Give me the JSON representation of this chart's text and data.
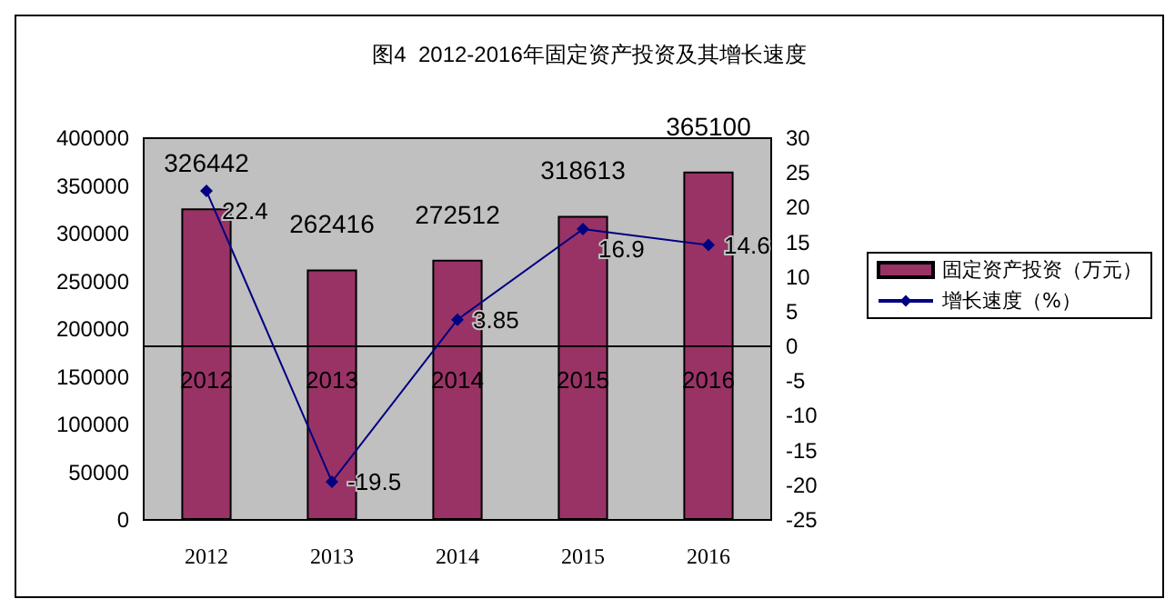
{
  "chart_data": {
    "type": "bar",
    "title": "图4  2012-2016年固定资产投资及其增长速度",
    "categories": [
      "2012",
      "2013",
      "2014",
      "2015",
      "2016"
    ],
    "series": [
      {
        "name": "固定资产投资（万元）",
        "color": "#993366",
        "values": [
          326442,
          262416,
          272512,
          318613,
          365100
        ]
      },
      {
        "name": "增长速度（%）",
        "type": "line",
        "axis": "y2",
        "color": "#000080",
        "values": [
          22.4,
          -19.5,
          3.85,
          16.9,
          14.6
        ]
      }
    ],
    "ylim": [
      0,
      400000
    ],
    "yticks": [
      0,
      50000,
      100000,
      150000,
      200000,
      250000,
      300000,
      350000,
      400000
    ],
    "y2lim": [
      -25,
      30
    ],
    "y2ticks": [
      -25,
      -20,
      -15,
      -10,
      -5,
      0,
      5,
      10,
      15,
      20,
      25,
      30
    ],
    "ref_lines": [
      {
        "axis": "y2",
        "value": 0,
        "color": "#000000"
      }
    ],
    "data_labels": true,
    "legend": "right",
    "marker": "diamond",
    "grid": false
  }
}
